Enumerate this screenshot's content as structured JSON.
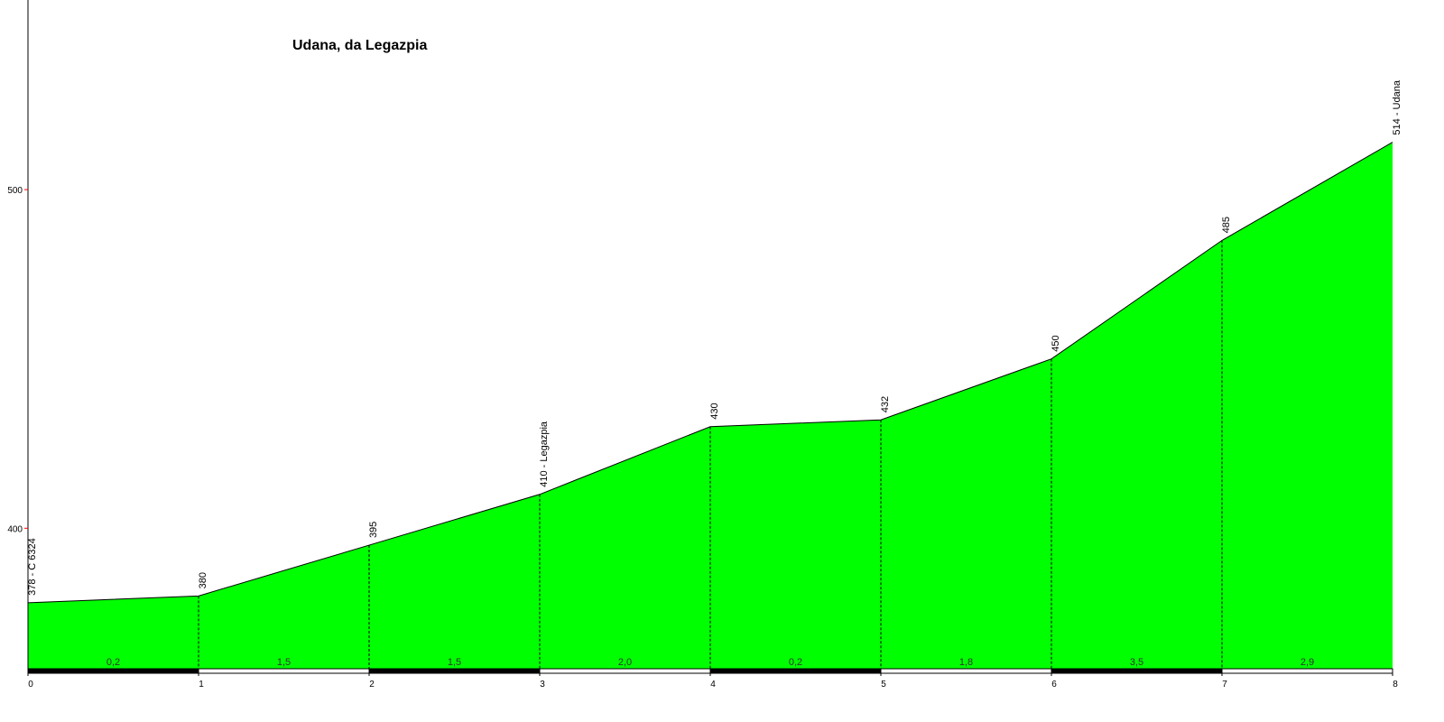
{
  "chart_data": {
    "type": "area",
    "title": "Udana, da Legazpia",
    "x": [
      0,
      1,
      2,
      3,
      4,
      5,
      6,
      7,
      8
    ],
    "values": [
      378,
      380,
      395,
      410,
      430,
      432,
      450,
      485,
      514
    ],
    "value_labels": [
      "378 - C 6324",
      "380",
      "395",
      "410 - Legazpia",
      "430",
      "432",
      "450",
      "485",
      "514 - Udana"
    ],
    "segments": {
      "values": [
        0.2,
        1.5,
        1.5,
        2.0,
        0.2,
        1.8,
        3.5,
        2.9
      ],
      "value_labels": [
        "0,2",
        "1,5",
        "1,5",
        "2,0",
        "0,2",
        "1,8",
        "3,5",
        "2,9"
      ]
    },
    "color": "#00ff00",
    "xlim": [
      0,
      8
    ],
    "xticks": [
      0,
      1,
      2,
      3,
      4,
      5,
      6,
      7,
      8
    ],
    "ylim": [
      358.5,
      556
    ],
    "yticks": [
      400,
      500
    ]
  }
}
